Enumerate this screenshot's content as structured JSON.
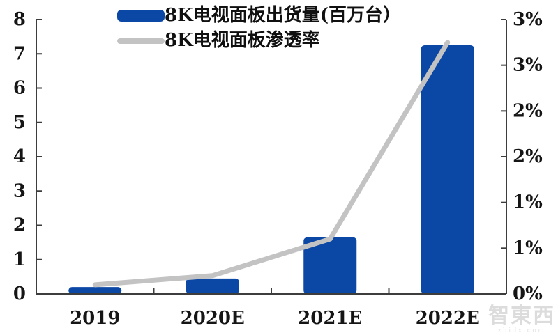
{
  "chart_data": {
    "type": "bar",
    "title": "",
    "categories": [
      "2019",
      "2020E",
      "2021E",
      "2022E"
    ],
    "series": [
      {
        "name": "8K电视面板出货量(百万台）",
        "type": "bar",
        "axis": "left",
        "unit": "百万台",
        "values": [
          0.2,
          0.45,
          1.65,
          7.25
        ],
        "color": "#0B48A6"
      },
      {
        "name": "8K电视面板渗透率",
        "type": "line",
        "axis": "right",
        "unit": "%",
        "values": [
          0.1,
          0.2,
          0.6,
          2.75
        ],
        "color": "#C3C3C3"
      }
    ],
    "left_axis": {
      "min": 0,
      "max": 8,
      "tick_step": 1,
      "tick_labels": [
        "0",
        "1",
        "2",
        "3",
        "4",
        "5",
        "6",
        "7",
        "8"
      ]
    },
    "right_axis": {
      "min": 0,
      "max": 3,
      "tick_step": 0.5,
      "tick_labels": [
        "0%",
        "1%",
        "1%",
        "2%",
        "2%",
        "3%",
        "3%"
      ]
    },
    "legend_position": "top",
    "grid": false,
    "colors": {
      "axis": "#3d3d3d",
      "text": "#151515",
      "background": "#ffffff"
    }
  },
  "watermark": {
    "logo": "智東西",
    "domain": "zhidx.com"
  }
}
